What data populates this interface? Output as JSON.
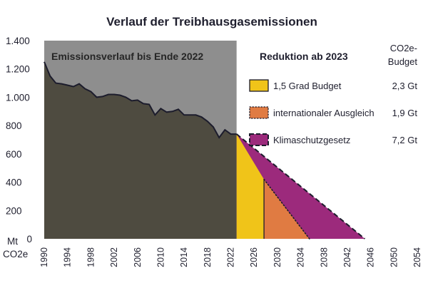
{
  "chart_data": {
    "type": "area",
    "title": "Verlauf der Treibhausgasemissionen",
    "y_unit_label": [
      "Mt",
      "CO2e"
    ],
    "ylim": [
      0,
      1400
    ],
    "y_ticks": [
      0,
      200,
      400,
      600,
      800,
      1000,
      1200,
      1400
    ],
    "y_tick_labels": [
      "0",
      "200",
      "400",
      "600",
      "800",
      "1.000",
      "1.200",
      "1.400"
    ],
    "xlim": [
      1990,
      2054
    ],
    "x_ticks": [
      1990,
      1994,
      1998,
      2002,
      2006,
      2010,
      2014,
      2018,
      2022,
      2026,
      2030,
      2034,
      2038,
      2042,
      2046,
      2050,
      2054
    ],
    "historic_band_label": "Emissionsverlauf bis Ende 2022",
    "historic_band_range": [
      1990,
      2023
    ],
    "legend_header": "Reduktion ab 2023",
    "budget_header": [
      "CO2e-",
      "Budget"
    ],
    "historic": {
      "x": [
        1990,
        1991,
        1992,
        1993,
        1994,
        1995,
        1996,
        1997,
        1998,
        1999,
        2000,
        2001,
        2002,
        2003,
        2004,
        2005,
        2006,
        2007,
        2008,
        2009,
        2010,
        2011,
        2012,
        2013,
        2014,
        2015,
        2016,
        2017,
        2018,
        2019,
        2020,
        2021,
        2022
      ],
      "y": [
        1250,
        1150,
        1100,
        1095,
        1085,
        1075,
        1095,
        1060,
        1040,
        1000,
        1005,
        1020,
        1020,
        1015,
        1000,
        975,
        980,
        955,
        950,
        875,
        920,
        895,
        900,
        915,
        875,
        875,
        875,
        860,
        830,
        790,
        715,
        770,
        740
      ]
    },
    "series": [
      {
        "name": "1,5 Grad Budget",
        "budget": "2,3 Gt",
        "color": "#f0c419",
        "style": "solid",
        "x": [
          2023,
          2027.7
        ],
        "y": [
          740,
          420
        ]
      },
      {
        "name": "internationaler Ausgleich",
        "budget": "1,9 Gt",
        "color": "#e07b42",
        "style": "dotted",
        "x": [
          2027.7,
          2035.5
        ],
        "y": [
          420,
          0
        ]
      },
      {
        "name": "Klimaschutzgesetz",
        "budget": "7,2 Gt",
        "color": "#9c2a7c",
        "style": "dashed",
        "x": [
          2023,
          2045
        ],
        "y": [
          740,
          0
        ]
      }
    ],
    "colors": {
      "historic_area": "#4e4b40",
      "historic_band": "#8e8e8e",
      "line": "#1c1c2c"
    }
  }
}
